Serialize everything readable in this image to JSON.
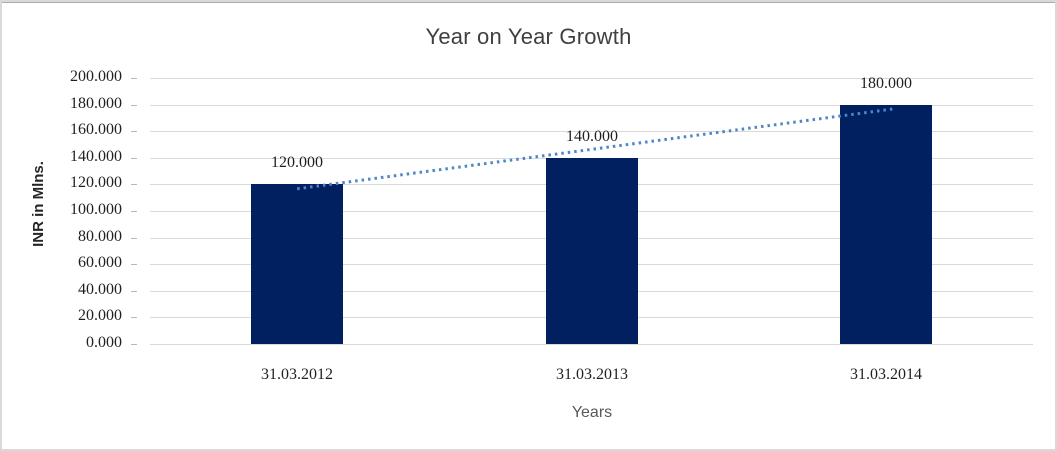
{
  "window": {
    "background": "#ffffff",
    "frame_border_color": "#d9d9d9"
  },
  "chart_data": {
    "type": "bar",
    "title": "Year on Year Growth",
    "xlabel": "Years",
    "ylabel": "INR in Mlns.",
    "categories": [
      "31.03.2012",
      "31.03.2013",
      "31.03.2014"
    ],
    "values": [
      120,
      140,
      180
    ],
    "data_labels": [
      "120.000",
      "140.000",
      "180.000"
    ],
    "y_ticks": [
      "200.000",
      "180.000",
      "160.000",
      "140.000",
      "120.000",
      "100.000",
      "80.000",
      "60.000",
      "40.000",
      "20.000",
      "0.000"
    ],
    "ylim": [
      0,
      200
    ],
    "y_step": 20,
    "grid": "horizontal",
    "legend": "none",
    "bar_color": "#002060",
    "gridline_color": "#d9d9d9",
    "tick_color": "#b7b7b7",
    "title_color": "#404040",
    "label_color": "#1f1f1f",
    "axis_title_color": "#595959",
    "trendline": {
      "type": "linear",
      "style": "dotted",
      "color": "#4f86c6",
      "start_value": 116.7,
      "end_value": 176.7
    }
  }
}
